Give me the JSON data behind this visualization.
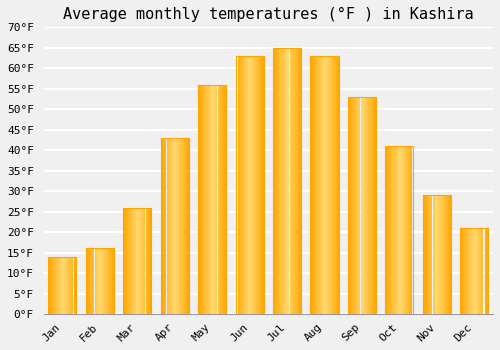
{
  "title": "Average monthly temperatures (°F ) in Kashira",
  "months": [
    "Jan",
    "Feb",
    "Mar",
    "Apr",
    "May",
    "Jun",
    "Jul",
    "Aug",
    "Sep",
    "Oct",
    "Nov",
    "Dec"
  ],
  "values": [
    14,
    16,
    26,
    43,
    56,
    63,
    65,
    63,
    53,
    41,
    29,
    21
  ],
  "bar_color_main": "#FFC020",
  "bar_color_light": "#FFD870",
  "bar_color_edge": "#FFA500",
  "ylim": [
    0,
    70
  ],
  "yticks": [
    0,
    5,
    10,
    15,
    20,
    25,
    30,
    35,
    40,
    45,
    50,
    55,
    60,
    65,
    70
  ],
  "background_color": "#f0f0f0",
  "plot_bg_color": "#f0f0f0",
  "grid_color": "#ffffff",
  "title_fontsize": 11,
  "tick_fontsize": 8,
  "font_family": "monospace"
}
